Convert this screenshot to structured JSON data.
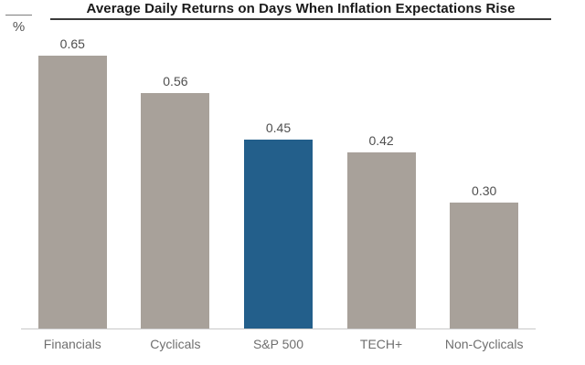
{
  "chart_data": {
    "type": "bar",
    "title": "Average Daily Returns on Days When Inflation Expectations Rise",
    "unit_label": "%",
    "categories": [
      "Financials",
      "Cyclicals",
      "S&P 500",
      "TECH+",
      "Non-Cyclicals"
    ],
    "values": [
      0.65,
      0.56,
      0.45,
      0.42,
      0.3
    ],
    "value_labels": [
      "0.65",
      "0.56",
      "0.45",
      "0.42",
      "0.30"
    ],
    "highlight_index": 2,
    "ylim": [
      0,
      0.7
    ],
    "grid": false,
    "legend": false,
    "colors": {
      "bar_default": "#a8a19a",
      "bar_highlight": "#235f8b",
      "title_text": "#1a1a1a",
      "title_rule": "#3a3a3a",
      "value_label": "#4f4f4f",
      "category_label": "#6f6f6f",
      "axis_line": "#c9c9c9"
    }
  }
}
